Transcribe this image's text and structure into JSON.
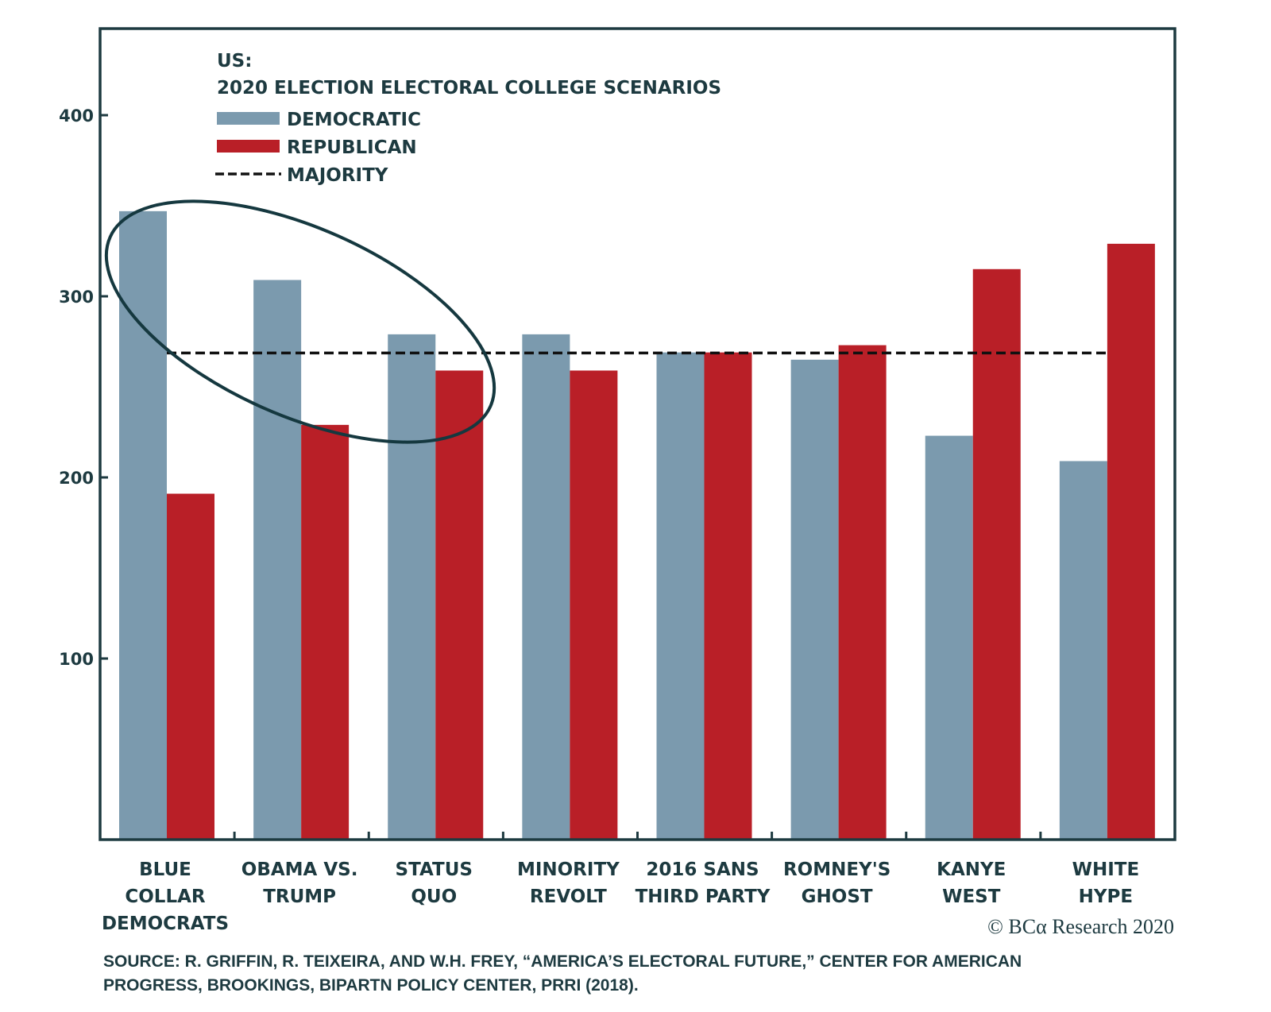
{
  "chart_data": {
    "type": "bar",
    "title_line1": "US:",
    "title": "2020 ELECTION ELECTORAL COLLEGE SCENARIOS",
    "xlabel": "",
    "ylabel": "",
    "ylim": [
      0,
      440
    ],
    "yticks": [
      100,
      200,
      300,
      400
    ],
    "grid": false,
    "legend_position": "top-left",
    "categories": [
      [
        "BLUE",
        "COLLAR",
        "DEMOCRATS"
      ],
      [
        "OBAMA VS.",
        "TRUMP"
      ],
      [
        "STATUS",
        "QUO"
      ],
      [
        "MINORITY",
        "REVOLT"
      ],
      [
        "2016 SANS",
        "THIRD PARTY"
      ],
      [
        "ROMNEY'S",
        "GHOST"
      ],
      [
        "KANYE",
        "WEST"
      ],
      [
        "WHITE",
        "HYPE"
      ]
    ],
    "series": [
      {
        "name": "DEMOCRATIC",
        "color": "#7b9aae",
        "values": [
          347,
          309,
          279,
          279,
          269,
          265,
          223,
          209
        ]
      },
      {
        "name": "REPUBLICAN",
        "color": "#b91f27",
        "values": [
          191,
          229,
          259,
          259,
          269,
          273,
          315,
          329
        ]
      }
    ],
    "reference_line": {
      "name": "MAJORITY",
      "value": 270,
      "style": "dashed",
      "color": "#111111"
    },
    "annotation": {
      "type": "ellipse",
      "highlights": [
        "BLUE COLLAR DEMOCRATS",
        "OBAMA VS. TRUMP",
        "STATUS QUO"
      ]
    },
    "credit": "© BCα Research 2020",
    "source_lines": [
      "SOURCE: R. GRIFFIN, R. TEIXEIRA, AND W.H. FREY, “AMERICA’S ELECTORAL FUTURE,” CENTER FOR AMERICAN",
      "PROGRESS, BROOKINGS, BIPARTN POLICY CENTER, PRRI (2018)."
    ]
  },
  "colors": {
    "axis": "#1d3a40",
    "democratic": "#7b9aae",
    "republican": "#b91f27"
  }
}
